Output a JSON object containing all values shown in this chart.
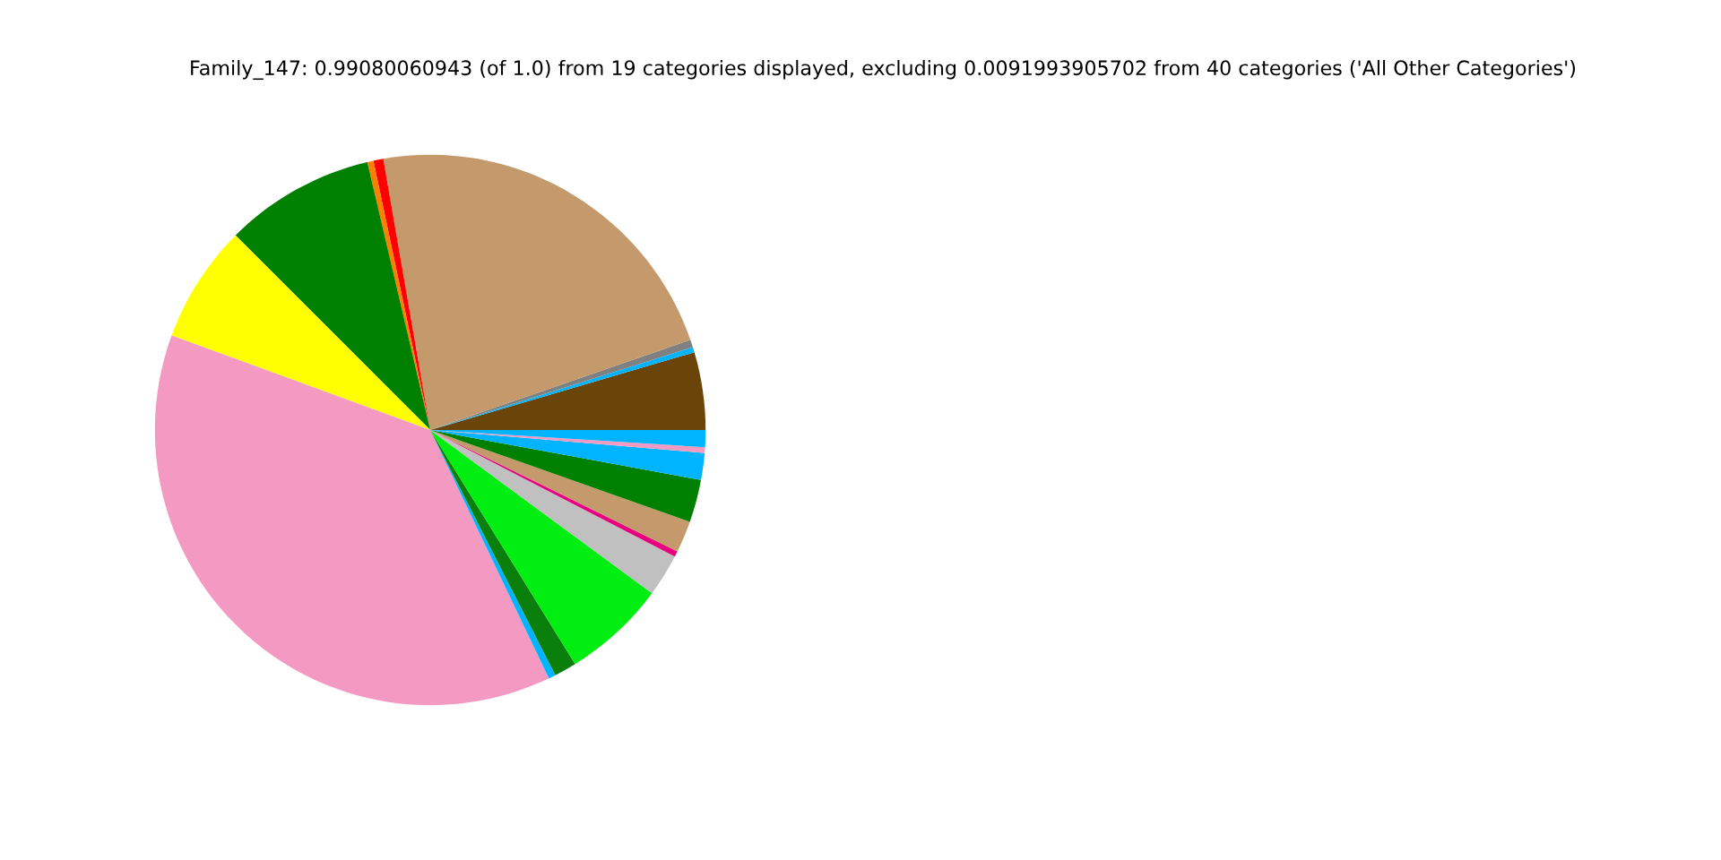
{
  "chart_data": {
    "type": "pie",
    "title": "Family_147: 0.99080060943 (of 1.0) from 19 categories displayed, excluding 0.0091993905702 from 40 categories ('All Other Categories')",
    "categories": [
      null,
      null,
      null,
      null,
      null,
      null,
      null,
      null,
      null,
      null,
      null,
      null,
      null,
      null,
      null,
      null,
      null,
      null,
      null
    ],
    "values": [
      4.56,
      0.31,
      0.44,
      22.42,
      0.58,
      0.36,
      8.83,
      6.92,
      37.67,
      0.42,
      1.31,
      6.08,
      2.5,
      0.33,
      1.86,
      2.5,
      1.58,
      0.33,
      1.0
    ],
    "colors": [
      "#6b4409",
      "#00b4ff",
      "#808080",
      "#c49a6c",
      "#ff0000",
      "#ff8000",
      "#008000",
      "#ffff00",
      "#f49ac2",
      "#00b4ff",
      "#0b7f0b",
      "#00ee11",
      "#c0c0c0",
      "#e6007e",
      "#c49a6c",
      "#008000",
      "#00b4ff",
      "#f49ac2",
      "#00b4ff"
    ],
    "legend": false
  }
}
